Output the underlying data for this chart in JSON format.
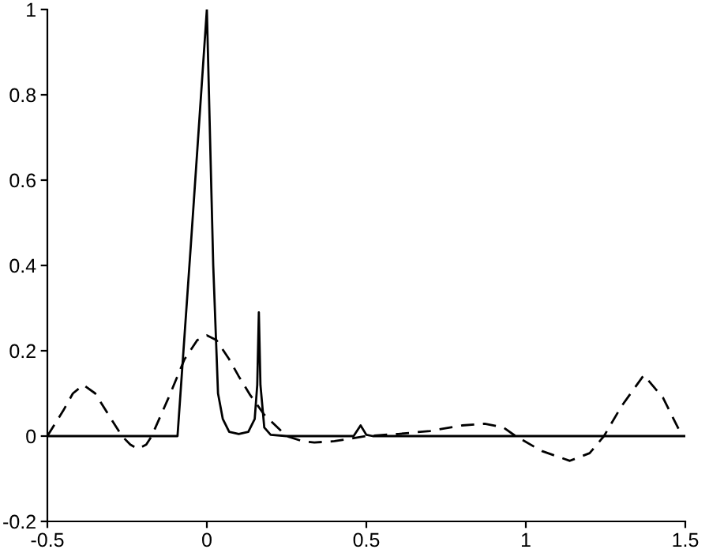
{
  "chart_data": {
    "type": "line",
    "xlim": [
      -0.5,
      1.5
    ],
    "ylim": [
      -0.2,
      1
    ],
    "xticks": [
      {
        "value": -0.5,
        "label": "-0.5"
      },
      0,
      0.5,
      1,
      1.5
    ],
    "yticks": [
      {
        "value": -0.2,
        "label": "-0.2"
      },
      0,
      0.2,
      0.4,
      0.6,
      0.8,
      1
    ],
    "grid": false,
    "legend": false,
    "series": [
      {
        "color": "#000000",
        "line_style": "solid",
        "x": [
          -0.5,
          -0.092,
          -0.05,
          0,
          0.02,
          0.035,
          0.05,
          0.07,
          0.1,
          0.13,
          0.15,
          0.158,
          0.163,
          0.168,
          0.18,
          0.2,
          0.25,
          0.46,
          0.482,
          0.5,
          0.52,
          1.5
        ],
        "values": [
          0,
          0,
          0.45,
          1,
          0.4,
          0.1,
          0.04,
          0.01,
          0.005,
          0.01,
          0.04,
          0.12,
          0.29,
          0.12,
          0.02,
          0.003,
          0,
          0,
          0.025,
          0.003,
          0,
          0
        ]
      },
      {
        "color": "#000000",
        "line_style": "dashed",
        "x": [
          -0.5,
          -0.45,
          -0.42,
          -0.387,
          -0.35,
          -0.3,
          -0.266,
          -0.24,
          -0.217,
          -0.19,
          -0.173,
          -0.12,
          -0.07,
          -0.03,
          0,
          0.03,
          0.07,
          0.1,
          0.136,
          0.18,
          0.25,
          0.3,
          0.337,
          0.4,
          0.5,
          0.6,
          0.7,
          0.8,
          0.871,
          0.93,
          0.968,
          1.05,
          1.138,
          1.2,
          1.245,
          1.3,
          1.37,
          1.43,
          1.49
        ],
        "values": [
          0,
          0.06,
          0.1,
          0.12,
          0.1,
          0.04,
          0,
          -0.02,
          -0.03,
          -0.02,
          0,
          0.09,
          0.18,
          0.225,
          0.236,
          0.225,
          0.18,
          0.14,
          0.096,
          0.05,
          0,
          -0.012,
          -0.015,
          -0.012,
          0,
          0.005,
          0.012,
          0.025,
          0.029,
          0.02,
          0,
          -0.035,
          -0.058,
          -0.04,
          0,
          0.07,
          0.143,
          0.09,
          0
        ]
      }
    ]
  }
}
